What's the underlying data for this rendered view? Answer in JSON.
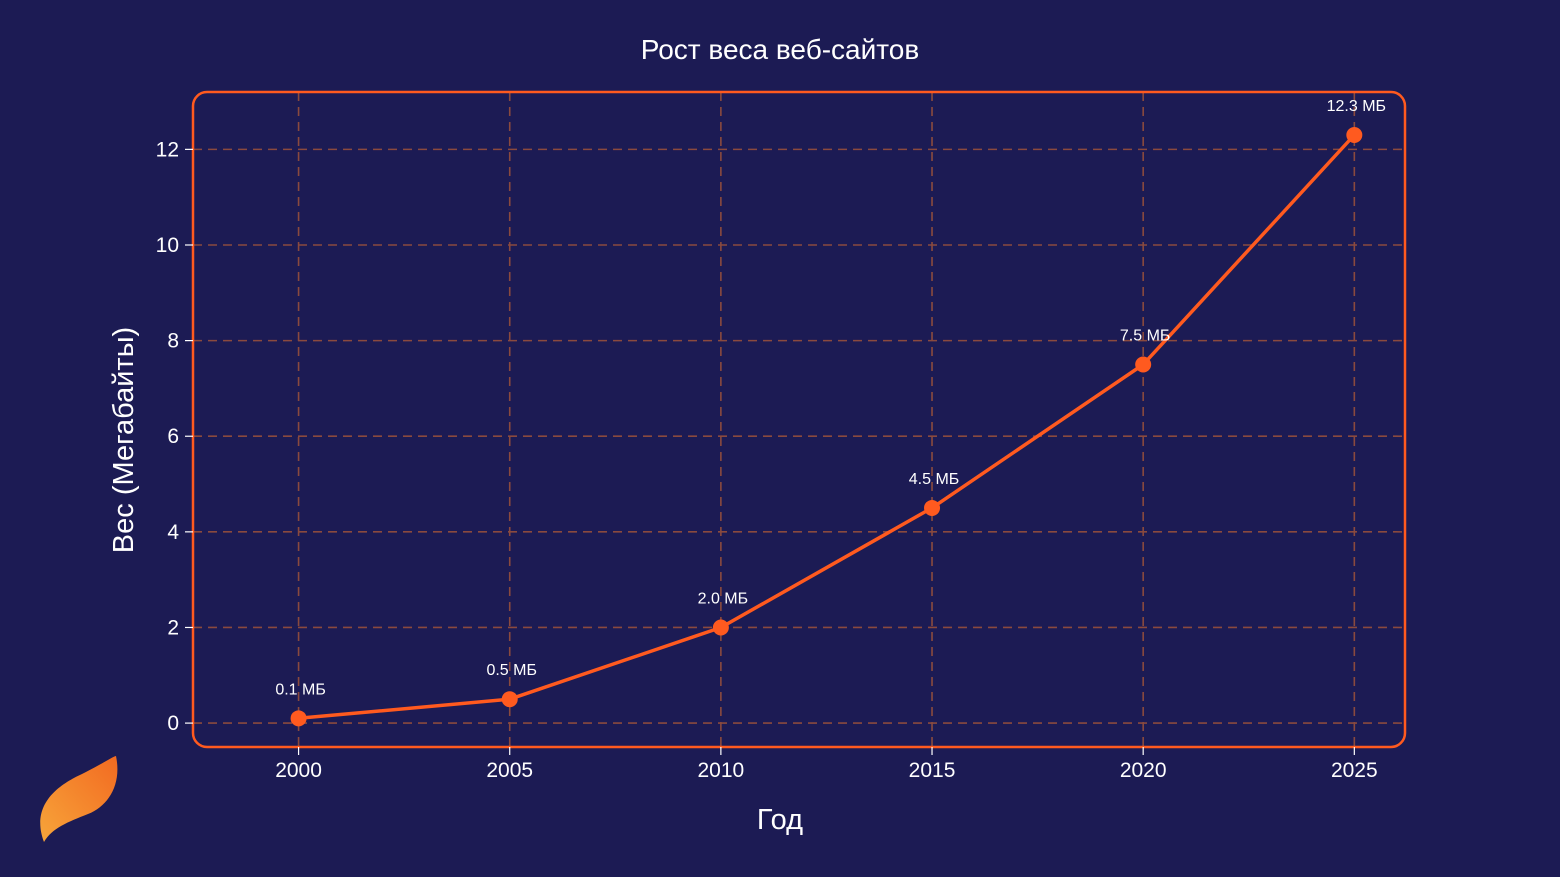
{
  "chart_data": {
    "type": "line",
    "title": "Рост веса веб-сайтов",
    "xlabel": "Год",
    "ylabel": "Вес (Мегабайты)",
    "x": [
      2000,
      2005,
      2010,
      2015,
      2020,
      2025
    ],
    "series": [
      {
        "values": [
          0.1,
          0.5,
          2.0,
          4.5,
          7.5,
          12.3
        ],
        "labels": [
          "0.1 МБ",
          "0.5 МБ",
          "2.0 МБ",
          "4.5 МБ",
          "7.5 МБ",
          "12.3 МБ"
        ]
      }
    ],
    "xticks": [
      "2000",
      "2005",
      "2010",
      "2015",
      "2020",
      "2025"
    ],
    "yticks": [
      "0",
      "2",
      "4",
      "6",
      "8",
      "10",
      "12"
    ],
    "xlim": [
      1997.5,
      2026.2
    ],
    "ylim": [
      -0.5,
      13.2
    ],
    "grid": true,
    "colors": {
      "background": "#1c1b54",
      "line": "#ff5a1f",
      "frame": "#ff5a1f",
      "grid": "#8a4a3e",
      "text": "#ffffff"
    }
  },
  "logo": {
    "icon": "flame-logo-icon"
  }
}
